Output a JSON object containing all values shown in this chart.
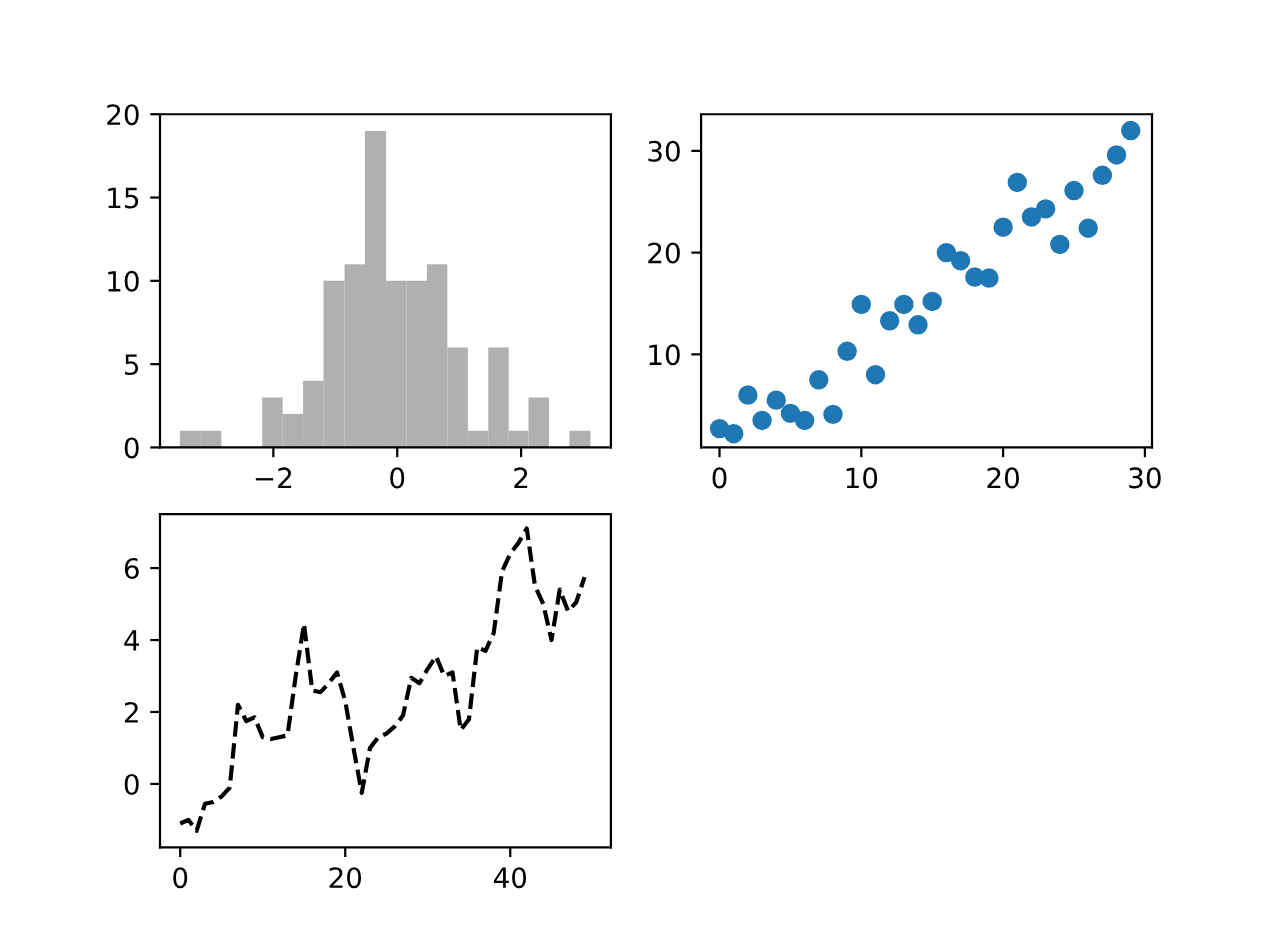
{
  "chart_data": [
    {
      "type": "histogram",
      "bins": [
        -3.51,
        -3.17,
        -2.84,
        -2.18,
        -1.85,
        -1.52,
        -1.19,
        -0.85,
        -0.52,
        -0.18,
        0.15,
        0.48,
        0.81,
        1.14,
        1.47,
        1.8,
        2.12,
        2.45,
        2.78,
        3.12
      ],
      "values": [
        1,
        1,
        0,
        3,
        2,
        4,
        10,
        11,
        19,
        10,
        10,
        11,
        6,
        1,
        6,
        1,
        3,
        0,
        1
      ],
      "color": "#b0b0b0",
      "xlim": [
        -3.83,
        3.45
      ],
      "xticks": [
        {
          "value": -2,
          "label": "−2"
        },
        0,
        2
      ],
      "ylim": [
        0,
        20
      ],
      "yticks": [
        0,
        5,
        10,
        15,
        20
      ],
      "grid": false
    },
    {
      "type": "scatter",
      "x": [
        0,
        1,
        2,
        3,
        4,
        5,
        6,
        7,
        8,
        9,
        10,
        11,
        12,
        13,
        14,
        15,
        16,
        17,
        18,
        19,
        20,
        21,
        22,
        23,
        24,
        25,
        26,
        27,
        28,
        29
      ],
      "values": [
        2.7,
        2.2,
        6.0,
        3.5,
        5.5,
        4.2,
        3.5,
        7.5,
        4.1,
        10.3,
        14.9,
        8.0,
        13.3,
        14.9,
        12.9,
        15.2,
        20.0,
        19.2,
        17.6,
        17.5,
        22.5,
        26.9,
        23.5,
        24.3,
        20.8,
        26.1,
        22.4,
        27.6,
        29.6,
        32.0
      ],
      "color": "#1f77b4",
      "marker": "circle",
      "xlim": [
        -1.3,
        30.5
      ],
      "xticks": [
        0,
        10,
        20,
        30
      ],
      "ylim": [
        0.85,
        33.6
      ],
      "yticks": [
        10,
        20,
        30
      ],
      "grid": false
    },
    {
      "type": "line",
      "x": [
        0,
        1,
        2,
        3,
        4,
        5,
        6,
        7,
        8,
        9,
        10,
        11,
        12,
        13,
        14,
        15,
        16,
        17,
        18,
        19,
        20,
        21,
        22,
        23,
        24,
        25,
        26,
        27,
        28,
        29,
        30,
        31,
        32,
        33,
        34,
        35,
        36,
        37,
        38,
        39,
        40,
        41,
        42,
        43,
        44,
        45,
        46,
        47,
        48,
        49
      ],
      "values": [
        -1.1,
        -1.0,
        -1.3,
        -0.55,
        -0.5,
        -0.35,
        -0.1,
        2.2,
        1.75,
        1.85,
        1.3,
        1.25,
        1.3,
        1.35,
        3.0,
        4.45,
        2.6,
        2.55,
        2.8,
        3.1,
        2.3,
        1.0,
        -0.25,
        1.0,
        1.3,
        1.4,
        1.6,
        1.9,
        2.95,
        2.8,
        3.2,
        3.55,
        3.0,
        3.1,
        1.5,
        1.8,
        3.8,
        3.7,
        4.2,
        5.9,
        6.4,
        6.7,
        7.1,
        5.5,
        5.0,
        4.0,
        5.4,
        4.8,
        5.05,
        5.75
      ],
      "color": "#000000",
      "line_style": "dashed",
      "marker": "none",
      "xlim": [
        -2.45,
        52.2
      ],
      "xticks": [
        0,
        20,
        40
      ],
      "ylim": [
        -1.76,
        7.5
      ],
      "yticks": [
        0,
        2,
        4,
        6
      ],
      "grid": false
    }
  ]
}
